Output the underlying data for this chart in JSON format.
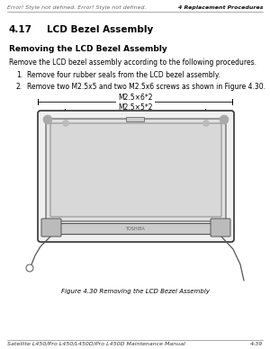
{
  "bg_color": "#ffffff",
  "header_left_text": "Error! Style not defined. Error! Style not defined.",
  "header_right_text": "4 Replacement Procedures",
  "header_font_size": 4.5,
  "header_italic": true,
  "section_number": "4.17",
  "section_tab": "LCD Bezel Assembly",
  "section_font_size": 7.5,
  "subsection_title": "Removing the LCD Bezel Assembly",
  "subsection_font_size": 6.5,
  "body_text": "Remove the LCD bezel assembly according to the following procedures.",
  "body_font_size": 5.5,
  "item1": "Remove four rubber seals from the LCD bezel assembly.",
  "item2": "Remove two M2.5x5 and two M2.5x6 screws as shown in Figure 4.30.",
  "item_font_size": 5.5,
  "label1": "M2.5×6*2",
  "label2": "M2.5×5*2",
  "label_font_size": 5.5,
  "figure_caption": "Figure 4.30 Removing the LCD Bezel Assembly",
  "figure_caption_font_size": 5.0,
  "footer_left": "Satellite L450/Pro L450/L450D/Pro L450D Maintenance Manual",
  "footer_right": "4-39",
  "footer_font_size": 4.5,
  "draw_color": "#333333",
  "bezel_fill": "#f0f0f0",
  "screen_fill": "#e0e0e0",
  "display_fill": "#d8d8d8",
  "hinge_fill": "#cccccc",
  "cable_color": "#555555"
}
